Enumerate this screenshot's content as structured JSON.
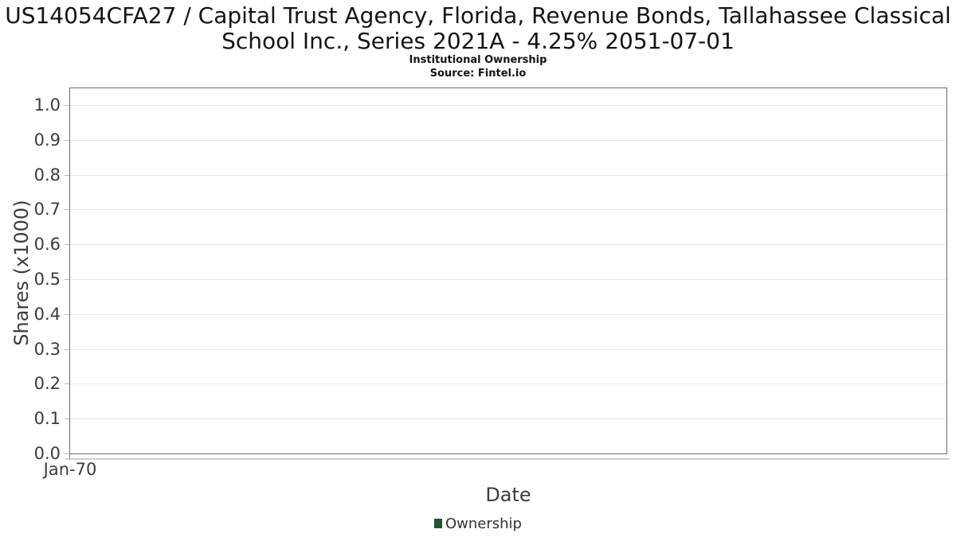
{
  "chart_data": {
    "type": "line",
    "title": "US14054CFA27 / Capital Trust Agency, Florida, Revenue Bonds, Tallahassee Classical School Inc., Series 2021A - 4.25% 2051-07-01",
    "subtitle": "Institutional Ownership",
    "source": "Source: Fintel.io",
    "xlabel": "Date",
    "ylabel": "Shares (x1000)",
    "x_ticks": [
      "Jan-70"
    ],
    "y_ticks": [
      0.0,
      0.1,
      0.2,
      0.3,
      0.4,
      0.5,
      0.6,
      0.7,
      0.8,
      0.9,
      1.0
    ],
    "ylim": [
      0,
      1.05
    ],
    "grid": true,
    "legend_position": "bottom",
    "legend": [
      {
        "label": "Ownership",
        "color": "#1e5631"
      }
    ],
    "series": [
      {
        "name": "Ownership",
        "x": [],
        "y": []
      }
    ],
    "colors": {
      "plot_border": "#6e6e6e",
      "gridline": "#e7e7e7",
      "text": "#3c3c3c",
      "legend_swatch": "#1e5631"
    }
  }
}
